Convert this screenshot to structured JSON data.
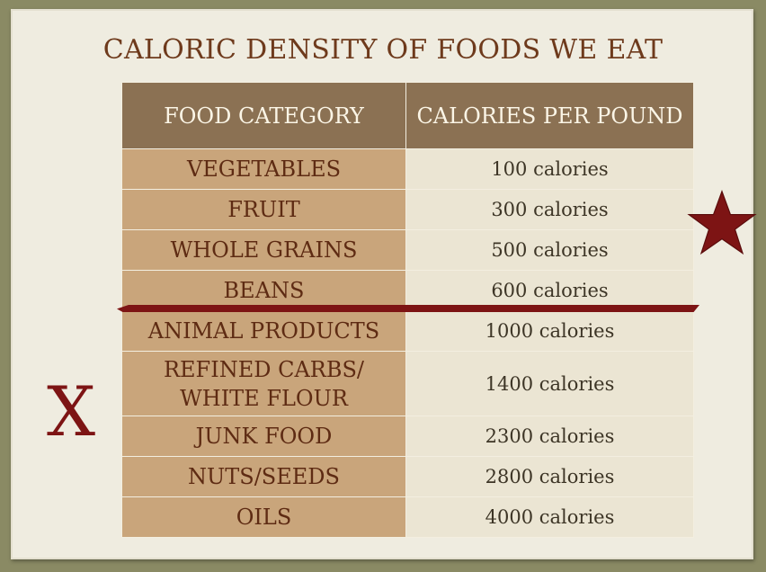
{
  "title": "CALORIC DENSITY OF FOODS WE EAT",
  "table": {
    "headers": [
      "FOOD CATEGORY",
      "CALORIES PER POUND"
    ],
    "rows": [
      {
        "category": "VEGETABLES",
        "calories": "100 calories"
      },
      {
        "category": "FRUIT",
        "calories": "300 calories"
      },
      {
        "category": "WHOLE GRAINS",
        "calories": "500 calories"
      },
      {
        "category": "BEANS",
        "calories": "600 calories"
      },
      {
        "category": "ANIMAL PRODUCTS",
        "calories": "1000 calories"
      },
      {
        "category": "REFINED CARBS/ WHITE FLOUR",
        "calories": "1400 calories"
      },
      {
        "category": "JUNK FOOD",
        "calories": "2300 calories"
      },
      {
        "category": "NUTS/SEEDS",
        "calories": "2800 calories"
      },
      {
        "category": "OILS",
        "calories": "4000 calories"
      }
    ]
  },
  "annotations": {
    "x_mark": "X",
    "star_icon": "star-icon",
    "accent_color": "#7d1414"
  }
}
